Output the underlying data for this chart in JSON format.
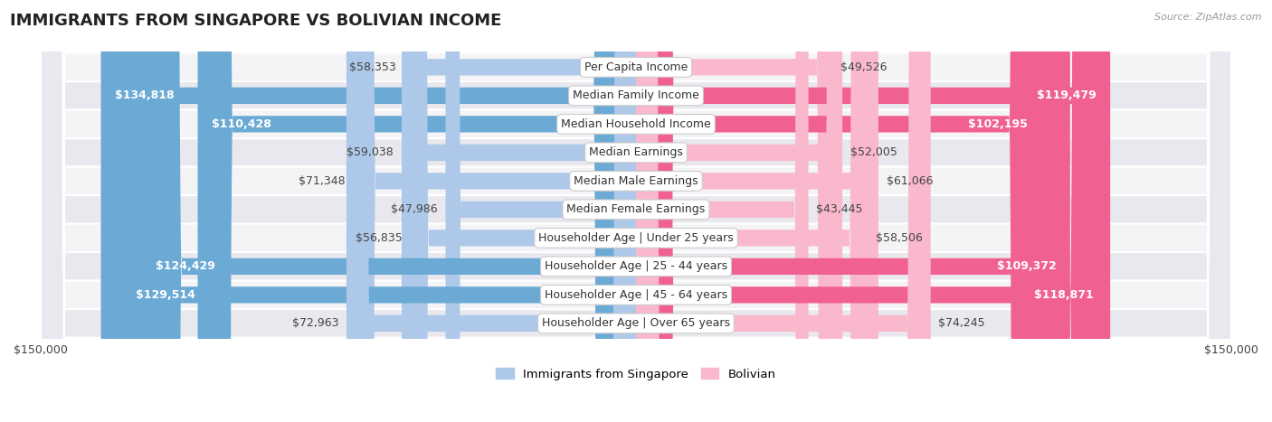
{
  "title": "IMMIGRANTS FROM SINGAPORE VS BOLIVIAN INCOME",
  "source": "Source: ZipAtlas.com",
  "categories": [
    "Per Capita Income",
    "Median Family Income",
    "Median Household Income",
    "Median Earnings",
    "Median Male Earnings",
    "Median Female Earnings",
    "Householder Age | Under 25 years",
    "Householder Age | 25 - 44 years",
    "Householder Age | 45 - 64 years",
    "Householder Age | Over 65 years"
  ],
  "singapore_values": [
    58353,
    134818,
    110428,
    59038,
    71348,
    47986,
    56835,
    124429,
    129514,
    72963
  ],
  "bolivian_values": [
    49526,
    119479,
    102195,
    52005,
    61066,
    43445,
    58506,
    109372,
    118871,
    74245
  ],
  "sg_light_color": "#adc8e8",
  "sg_dark_color": "#6aaad4",
  "bo_light_color": "#f9b8cc",
  "bo_dark_color": "#f06090",
  "sg_threshold": 80000,
  "bo_threshold": 80000,
  "row_bg_light": "#f4f4f6",
  "row_bg_dark": "#e8e8ee",
  "axis_limit": 150000,
  "bar_height": 0.58,
  "label_fontsize": 9.0,
  "title_fontsize": 13,
  "cat_fontsize": 9.0,
  "legend_fontsize": 9.5
}
